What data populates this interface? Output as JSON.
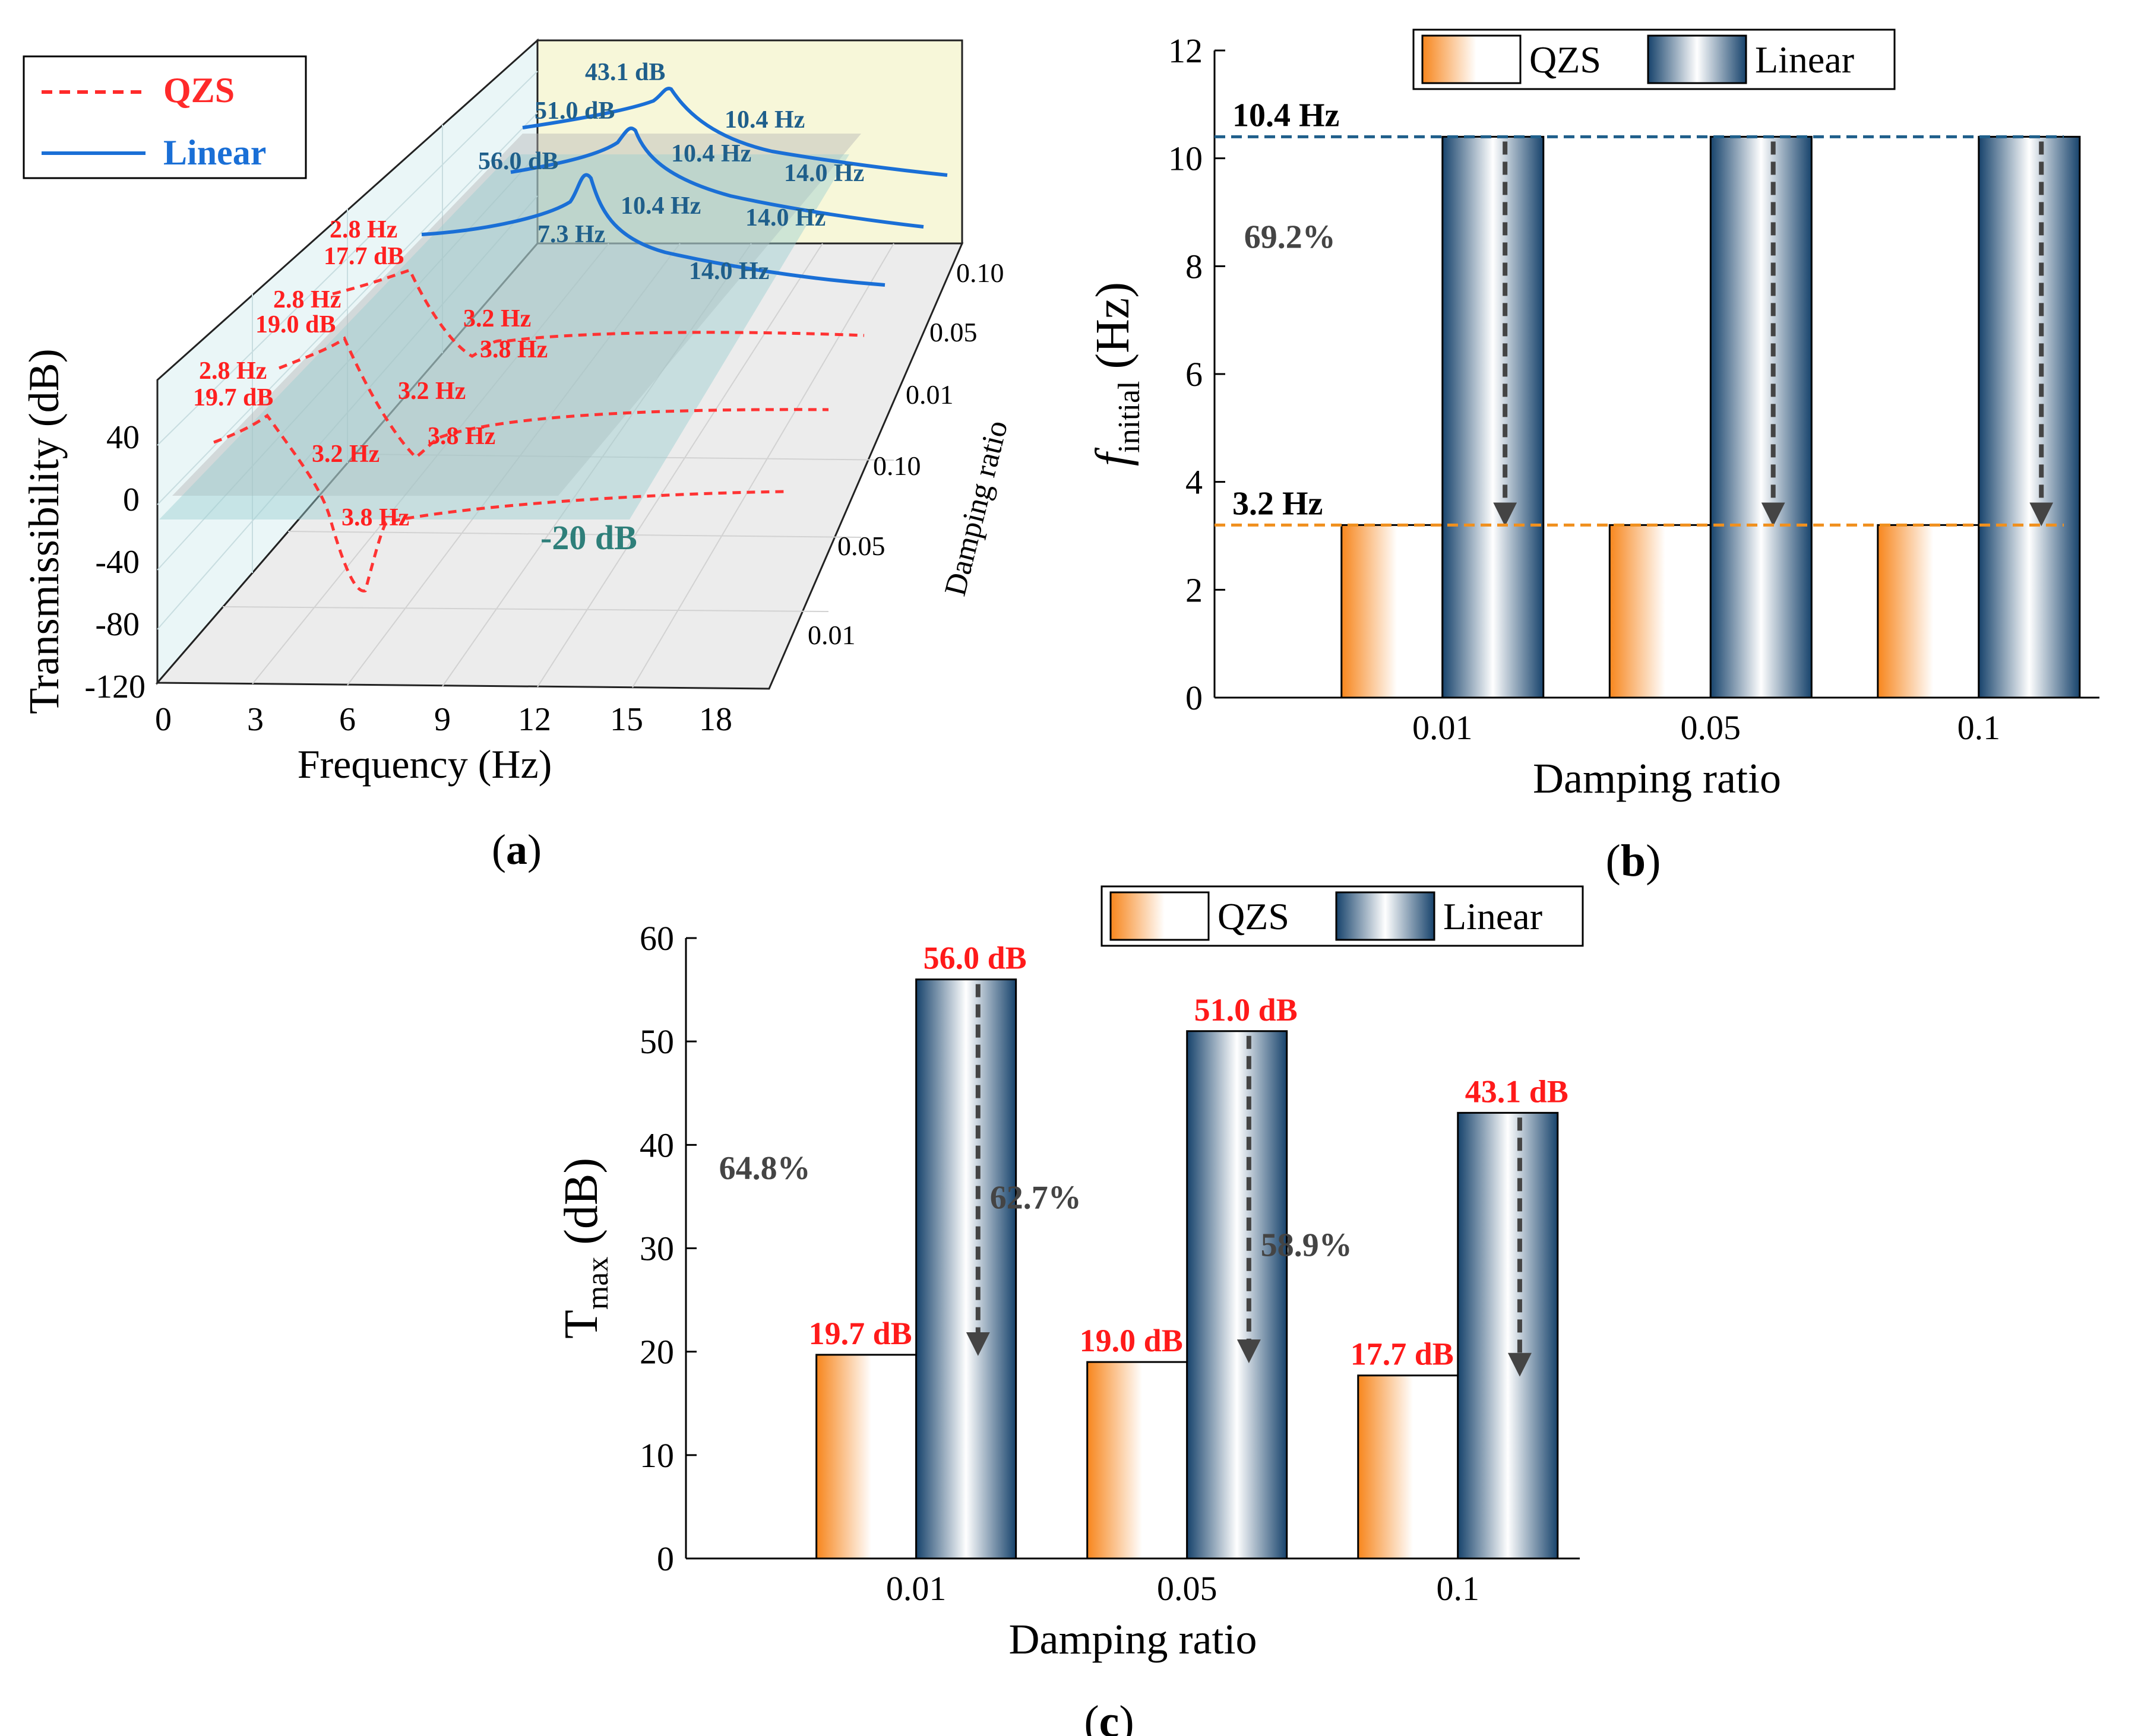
{
  "chart_data": [
    {
      "id": "a",
      "type": "line",
      "projection": "3d",
      "panel_label": "a",
      "zlabel": "Transmissibility (dB)",
      "xlabel": "Frequency (Hz)",
      "ylabel": "Damping ratio",
      "x_ticks": [
        "0",
        "3",
        "6",
        "9",
        "12",
        "15",
        "18"
      ],
      "z_ticks": [
        "40",
        "0",
        "-40",
        "-80",
        "-120"
      ],
      "y_ticks_qzs": [
        "0.01",
        "0.05",
        "0.10"
      ],
      "y_ticks_linear": [
        "0.01",
        "0.05",
        "0.10"
      ],
      "legend": [
        {
          "name": "QZS",
          "color": "#ff2a2a",
          "style": "dashed"
        },
        {
          "name": "Linear",
          "color": "#1a6fd6",
          "style": "solid"
        }
      ],
      "reference_plane_label": "-20 dB",
      "linear_annotations": [
        "43.1 dB",
        "51.0 dB",
        "56.0 dB",
        "10.4 Hz",
        "10.4 Hz",
        "10.4 Hz",
        "14.0 Hz",
        "14.0 Hz",
        "14.0 Hz",
        "7.3 Hz"
      ],
      "qzs_annotations": [
        "2.8 Hz",
        "17.7 dB",
        "2.8 Hz",
        "19.0 dB",
        "2.8 Hz",
        "19.7 dB",
        "3.2 Hz",
        "3.2 Hz",
        "3.2 Hz",
        "3.8 Hz",
        "3.8 Hz",
        "3.8 Hz"
      ]
    },
    {
      "id": "b",
      "type": "bar",
      "panel_label": "b",
      "categories": [
        "0.01",
        "0.05",
        "0.1"
      ],
      "series": [
        {
          "name": "QZS",
          "values": [
            3.2,
            3.2,
            3.2
          ]
        },
        {
          "name": "Linear",
          "values": [
            10.4,
            10.4,
            10.4
          ]
        }
      ],
      "ylabel_main": "f",
      "ylabel_sub": "initial",
      "ylabel_unit": "(Hz)",
      "xlabel": "Damping ratio",
      "ylim": [
        0,
        12
      ],
      "yticks": [
        0,
        2,
        4,
        6,
        8,
        10,
        12
      ],
      "reference_lines": [
        {
          "value": 10.4,
          "label": "10.4 Hz",
          "color": "#1f5f8b"
        },
        {
          "value": 3.2,
          "label": "3.2 Hz",
          "color": "#f0901e"
        }
      ],
      "reduction_labels": [
        "69.2%"
      ]
    },
    {
      "id": "c",
      "type": "bar",
      "panel_label": "c",
      "categories": [
        "0.01",
        "0.05",
        "0.1"
      ],
      "series": [
        {
          "name": "QZS",
          "values": [
            19.7,
            19.0,
            17.7
          ]
        },
        {
          "name": "Linear",
          "values": [
            56.0,
            51.0,
            43.1
          ]
        }
      ],
      "value_labels_qzs": [
        "19.7 dB",
        "19.0 dB",
        "17.7 dB"
      ],
      "value_labels_linear": [
        "56.0 dB",
        "51.0 dB",
        "43.1 dB"
      ],
      "ylabel_main": "T",
      "ylabel_sub": "max",
      "ylabel_unit": "(dB)",
      "xlabel": "Damping ratio",
      "ylim": [
        0,
        60
      ],
      "yticks": [
        0,
        10,
        20,
        30,
        40,
        50,
        60
      ],
      "reduction_labels": [
        "64.8%",
        "62.7%",
        "58.9%"
      ]
    }
  ]
}
